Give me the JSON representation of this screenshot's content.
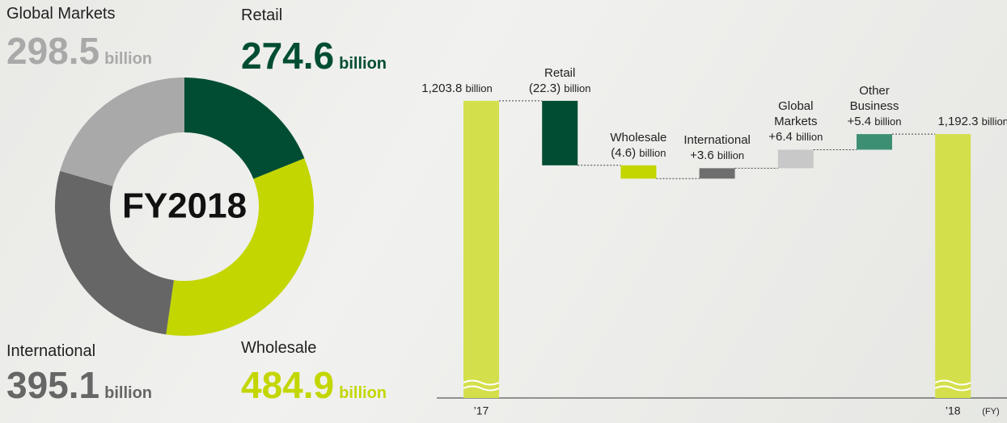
{
  "chart_data": [
    {
      "type": "donut",
      "center_label": "FY2018",
      "unit": "billion",
      "categories": [
        "Retail",
        "Wholesale",
        "International",
        "Global Markets"
      ],
      "values": [
        274.6,
        484.9,
        395.1,
        298.5
      ],
      "colors": [
        "#004d33",
        "#c3d600",
        "#666666",
        "#a9a9a9"
      ]
    },
    {
      "type": "waterfall",
      "unit": "billion",
      "x_unit": "(FY)",
      "categories": [
        "’17",
        null,
        null,
        null,
        null,
        null,
        "’18"
      ],
      "bar_labels": [
        null,
        "Retail",
        "Wholesale",
        "International",
        "Global Markets",
        "Other Business",
        null
      ],
      "values": [
        1203.8,
        -22.3,
        -4.6,
        3.6,
        6.4,
        5.4,
        1192.3
      ],
      "value_labels": [
        "1,203.8",
        "(22.3)",
        "(4.6)",
        "+3.6",
        "+6.4",
        "+5.4",
        "1,192.3"
      ],
      "is_total": [
        true,
        false,
        false,
        false,
        false,
        false,
        true
      ],
      "colors": [
        "#d4df4c",
        "#004d33",
        "#c3d600",
        "#6e6e6e",
        "#c8c8c8",
        "#3d8f74",
        "#d4df4c"
      ],
      "ylim": [
        1170,
        1210
      ],
      "axis_break": true
    }
  ]
}
